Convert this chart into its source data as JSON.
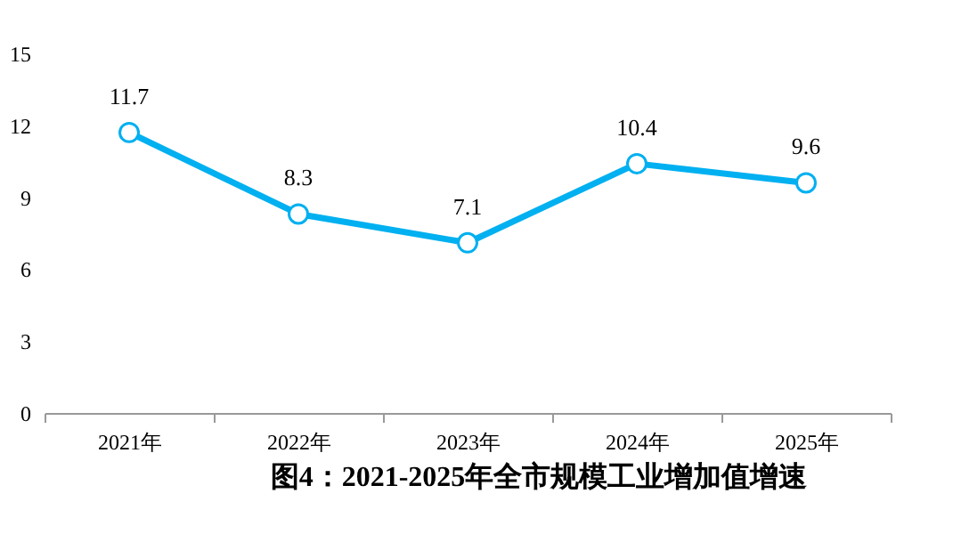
{
  "chart_data": {
    "type": "line",
    "title": "图4：2021-2025年全市规模工业增加值增速",
    "categories": [
      "2021年",
      "2022年",
      "2023年",
      "2024年",
      "2025年"
    ],
    "series": [
      {
        "color": "#00b0f0",
        "values": [
          11.7,
          8.3,
          7.1,
          10.4,
          9.6
        ]
      }
    ],
    "ylim": [
      0,
      15
    ],
    "yticks": [
      0,
      3,
      6,
      9,
      12,
      15
    ],
    "data_labels": true,
    "marker": "circle",
    "line_style": "solid",
    "grid": false
  }
}
